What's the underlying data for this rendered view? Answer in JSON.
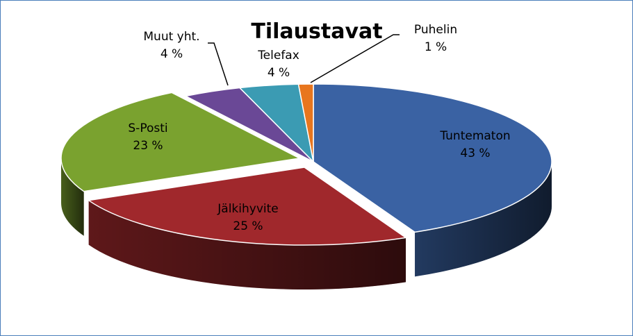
{
  "chart_data": {
    "type": "pie",
    "title": "Tilaustavat",
    "slices": [
      {
        "label": "Tuntematon",
        "value": 43,
        "pct_label": "43 %",
        "color": "#3a62a3"
      },
      {
        "label": "Jälkihyvite",
        "value": 25,
        "pct_label": "25 %",
        "color": "#a0282c"
      },
      {
        "label": "S-Posti",
        "value": 23,
        "pct_label": "23 %",
        "color": "#7aa22f"
      },
      {
        "label": "Muut yht.",
        "value": 4,
        "pct_label": "4 %",
        "color": "#6a4896"
      },
      {
        "label": "Telefax",
        "value": 4,
        "pct_label": "4 %",
        "color": "#3b9bb3"
      },
      {
        "label": "Puhelin",
        "value": 1,
        "pct_label": "1 %",
        "color": "#e8761e"
      }
    ],
    "exploded": [
      "Jälkihyvite",
      "S-Posti"
    ],
    "legend": "none",
    "style": "3d-pie"
  }
}
